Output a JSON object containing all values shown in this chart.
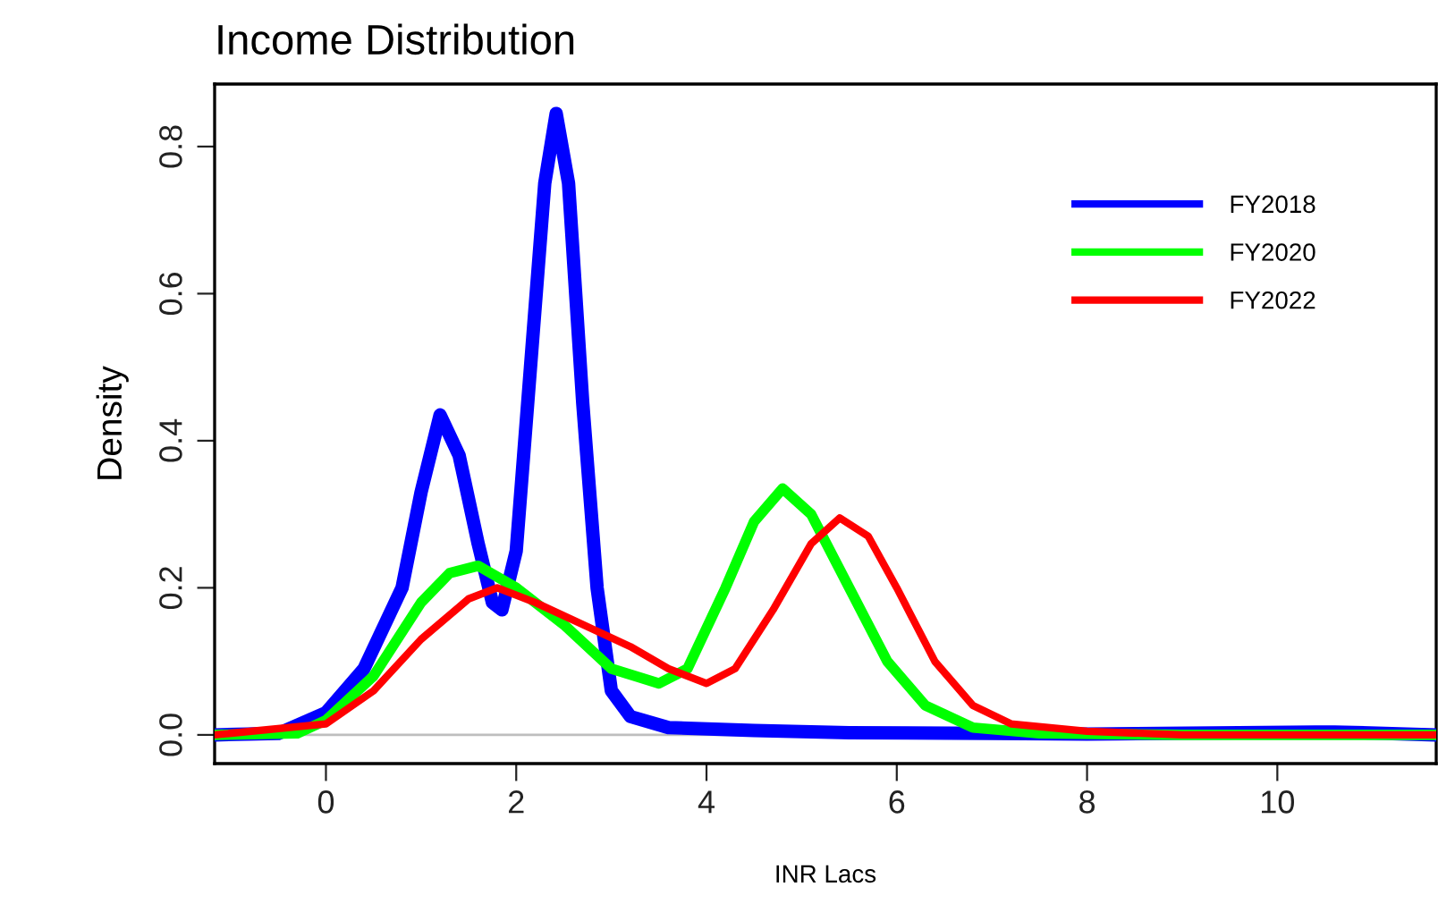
{
  "chart_data": {
    "type": "line",
    "title": "Income Distribution",
    "xlabel": "INR Lacs",
    "ylabel": "Density",
    "xlim": [
      -1.17,
      11.67
    ],
    "ylim": [
      -0.039,
      0.885
    ],
    "xticks": [
      0,
      2,
      4,
      6,
      8,
      10
    ],
    "yticks": [
      {
        "value": 0,
        "label": "0.0"
      },
      {
        "value": 0.2,
        "label": "0.2"
      },
      {
        "value": 0.4,
        "label": "0.4"
      },
      {
        "value": 0.6,
        "label": "0.6"
      },
      {
        "value": 0.8,
        "label": "0.8"
      }
    ],
    "grid": false,
    "legend": "top right",
    "line_style": "solid",
    "ref_lines": [
      {
        "axis": "y",
        "value": 0,
        "color": "#bebebe"
      }
    ],
    "series": [
      {
        "name": "FY2018",
        "color": "#0000ff",
        "x": [
          -1.17,
          -0.5,
          0,
          0.4,
          0.8,
          1.0,
          1.2,
          1.4,
          1.6,
          1.75,
          1.85,
          2.0,
          2.15,
          2.3,
          2.42,
          2.55,
          2.7,
          2.85,
          3.0,
          3.2,
          3.6,
          4.5,
          5.5,
          7,
          8,
          10.4,
          10.6,
          11.67
        ],
        "values": [
          0,
          0.002,
          0.03,
          0.09,
          0.2,
          0.33,
          0.435,
          0.38,
          0.26,
          0.18,
          0.17,
          0.25,
          0.5,
          0.75,
          0.845,
          0.75,
          0.45,
          0.2,
          0.06,
          0.025,
          0.01,
          0.006,
          0.003,
          0.002,
          0.001,
          0.004,
          0.004,
          0
        ]
      },
      {
        "name": "FY2020",
        "color": "#00ff00",
        "x": [
          -1.17,
          -0.3,
          0,
          0.5,
          1.0,
          1.3,
          1.6,
          2.0,
          2.5,
          3.0,
          3.5,
          3.8,
          4.2,
          4.5,
          4.8,
          5.1,
          5.5,
          5.9,
          6.3,
          6.8,
          7.5,
          9,
          11.67
        ],
        "values": [
          0,
          0.002,
          0.02,
          0.08,
          0.18,
          0.22,
          0.23,
          0.2,
          0.15,
          0.09,
          0.07,
          0.09,
          0.2,
          0.29,
          0.335,
          0.3,
          0.2,
          0.1,
          0.04,
          0.01,
          0.002,
          0,
          0
        ]
      },
      {
        "name": "FY2022",
        "color": "#ff0000",
        "x": [
          -1.17,
          0,
          0.5,
          1.0,
          1.5,
          1.8,
          2.2,
          2.7,
          3.2,
          3.6,
          4.0,
          4.3,
          4.7,
          5.1,
          5.4,
          5.7,
          6.0,
          6.4,
          6.8,
          7.2,
          8,
          9,
          11.67
        ],
        "values": [
          0,
          0.015,
          0.06,
          0.13,
          0.185,
          0.2,
          0.18,
          0.15,
          0.12,
          0.09,
          0.07,
          0.09,
          0.17,
          0.26,
          0.295,
          0.27,
          0.2,
          0.1,
          0.04,
          0.015,
          0.005,
          0,
          0
        ]
      }
    ]
  }
}
